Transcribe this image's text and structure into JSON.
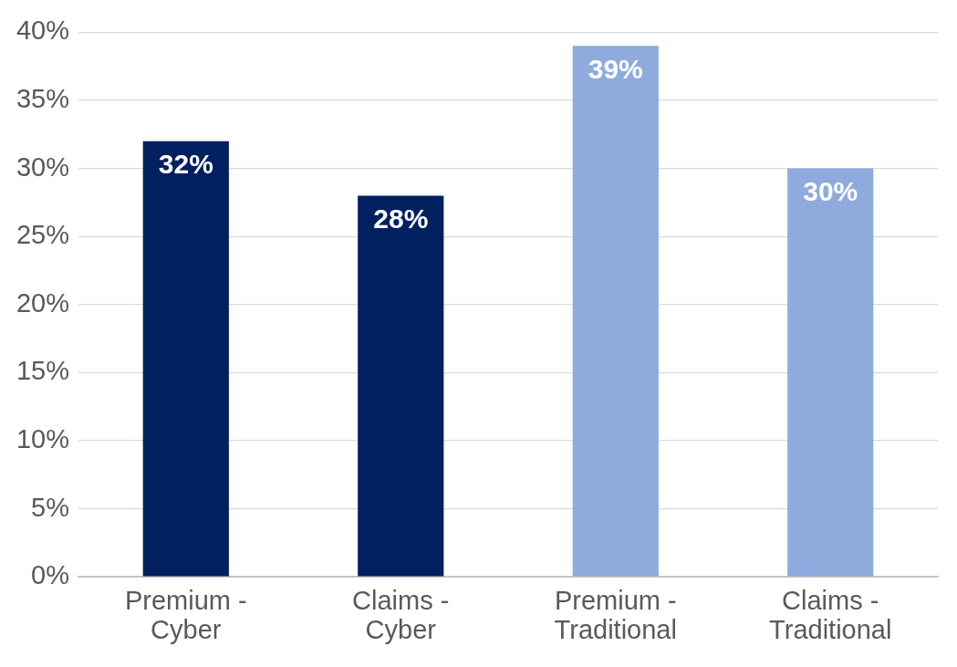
{
  "chart_data": {
    "type": "bar",
    "categories": [
      "Premium - Cyber",
      "Claims - Cyber",
      "Premium - Traditional",
      "Claims - Traditional"
    ],
    "values": [
      32,
      28,
      39,
      30
    ],
    "colors": [
      "#002060",
      "#002060",
      "#8faadc",
      "#8faadc"
    ],
    "value_labels": [
      "32%",
      "28%",
      "39%",
      "30%"
    ],
    "ylim": [
      0,
      40
    ],
    "yticks": [
      {
        "value": 0,
        "label": "0%"
      },
      {
        "value": 5,
        "label": "5%"
      },
      {
        "value": 10,
        "label": "10%"
      },
      {
        "value": 15,
        "label": "15%"
      },
      {
        "value": 20,
        "label": "20%"
      },
      {
        "value": 25,
        "label": "25%"
      },
      {
        "value": 30,
        "label": "30%"
      },
      {
        "value": 35,
        "label": "35%"
      },
      {
        "value": 40,
        "label": "40%"
      }
    ],
    "grid": "y",
    "legend": false
  }
}
